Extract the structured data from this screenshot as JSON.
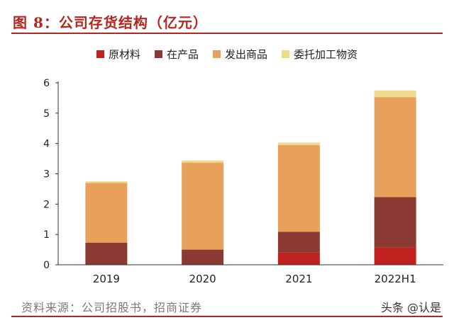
{
  "header": {
    "title": "图 8：公司存货结构（亿元）"
  },
  "chart_data": {
    "type": "bar",
    "stacked": true,
    "categories": [
      "2019",
      "2020",
      "2021",
      "2022H1"
    ],
    "series": [
      {
        "name": "原材料",
        "color": "#c0201e",
        "values": [
          0.0,
          0.0,
          0.4,
          0.57
        ]
      },
      {
        "name": "在产品",
        "color": "#8b3a33",
        "values": [
          0.73,
          0.5,
          0.69,
          1.66
        ]
      },
      {
        "name": "发出商品",
        "color": "#e7a15a",
        "values": [
          1.97,
          2.87,
          2.86,
          3.3
        ]
      },
      {
        "name": "委托加工物资",
        "color": "#efd98a",
        "values": [
          0.05,
          0.07,
          0.08,
          0.22
        ]
      }
    ],
    "ylim": [
      0,
      6
    ],
    "yticks": [
      "0",
      "1",
      "2",
      "3",
      "4",
      "5",
      "6"
    ],
    "grid": false,
    "legend_position": "top"
  },
  "footer": {
    "source": "资料来源：公司招股书，招商证券",
    "watermark": "头条 @认是"
  }
}
